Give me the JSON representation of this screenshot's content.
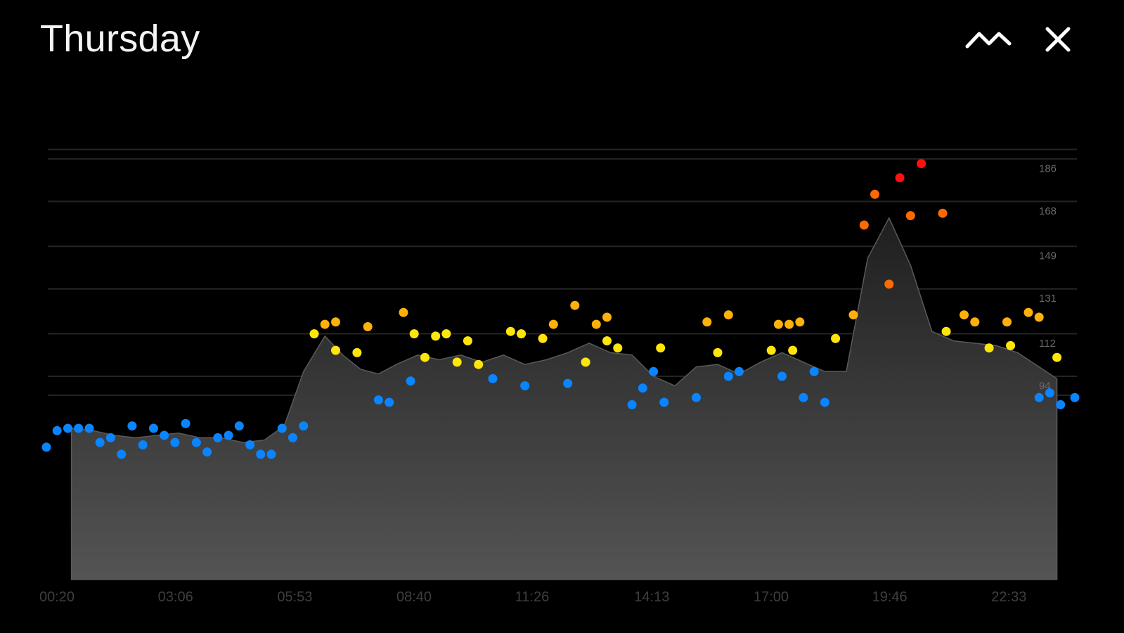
{
  "header": {
    "title": "Thursday",
    "toggle_icon": "trend-line-icon",
    "close_icon": "close-icon"
  },
  "chart_data": {
    "type": "scatter",
    "title": "Thursday",
    "xlabel": "",
    "ylabel": "",
    "x_ticks": [
      "00:20",
      "03:06",
      "05:53",
      "08:40",
      "11:26",
      "14:13",
      "17:00",
      "19:46",
      "22:33"
    ],
    "y_ticks": [
      94,
      112,
      131,
      149,
      168,
      186
    ],
    "ylim": [
      12,
      192
    ],
    "xlim": [
      "00:20",
      "24:20"
    ],
    "grid": true,
    "colors": {
      "background": "#000000",
      "area_top": "#1f1f1f",
      "area_bottom": "#545454",
      "gridline": "#242424",
      "low": "#0a84ff",
      "moderate": "#ffe60a",
      "elevated": "#ffb00a",
      "high": "#ff6a00",
      "peak": "#ff1010"
    },
    "trend": {
      "x": [
        "00:55",
        "01:25",
        "01:55",
        "02:25",
        "02:55",
        "03:25",
        "03:55",
        "04:25",
        "04:55",
        "05:25",
        "05:53",
        "06:20",
        "06:50",
        "07:15",
        "07:40",
        "08:05",
        "08:30",
        "09:00",
        "09:30",
        "10:00",
        "10:30",
        "11:00",
        "11:30",
        "12:00",
        "12:30",
        "13:00",
        "13:30",
        "14:00",
        "14:30",
        "15:00",
        "15:30",
        "16:00",
        "16:30",
        "17:00",
        "17:30",
        "18:00",
        "18:30",
        "19:00",
        "19:30",
        "20:00",
        "20:30",
        "21:00",
        "21:30",
        "22:00",
        "22:30",
        "23:00",
        "23:30",
        "23:55"
      ],
      "y": [
        76,
        75,
        73,
        72,
        73,
        74,
        72,
        72,
        70,
        71,
        77,
        100,
        115,
        107,
        101,
        99,
        103,
        107,
        105,
        107,
        104,
        107,
        103,
        105,
        108,
        112,
        108,
        107,
        98,
        94,
        102,
        103,
        99,
        104,
        108,
        104,
        100,
        100,
        148,
        165,
        145,
        117,
        113,
        112,
        111,
        108,
        102,
        97
      ]
    },
    "series": [
      {
        "name": "",
        "color_key": "low",
        "points": [
          [
            "00:20",
            68
          ],
          [
            "00:35",
            75
          ],
          [
            "00:50",
            76
          ],
          [
            "01:05",
            76
          ],
          [
            "01:20",
            76
          ],
          [
            "01:35",
            70
          ],
          [
            "01:50",
            72
          ],
          [
            "02:05",
            65
          ],
          [
            "02:20",
            77
          ],
          [
            "02:35",
            69
          ],
          [
            "02:50",
            76
          ],
          [
            "03:05",
            73
          ],
          [
            "03:20",
            70
          ],
          [
            "03:35",
            78
          ],
          [
            "03:50",
            70
          ],
          [
            "04:05",
            66
          ],
          [
            "04:20",
            72
          ],
          [
            "04:35",
            73
          ],
          [
            "04:50",
            77
          ],
          [
            "05:05",
            69
          ],
          [
            "05:20",
            65
          ],
          [
            "05:35",
            65
          ],
          [
            "05:50",
            76
          ],
          [
            "06:05",
            72
          ],
          [
            "06:20",
            77
          ],
          [
            "08:05",
            88
          ],
          [
            "08:20",
            87
          ],
          [
            "08:50",
            96
          ],
          [
            "10:45",
            97
          ],
          [
            "11:30",
            94
          ],
          [
            "12:30",
            95
          ],
          [
            "14:00",
            86
          ],
          [
            "14:15",
            93
          ],
          [
            "14:30",
            100
          ],
          [
            "14:45",
            87
          ],
          [
            "15:30",
            89
          ],
          [
            "16:15",
            98
          ],
          [
            "16:30",
            100
          ],
          [
            "17:30",
            98
          ],
          [
            "18:00",
            89
          ],
          [
            "18:15",
            100
          ],
          [
            "18:30",
            87
          ],
          [
            "23:30",
            89
          ],
          [
            "23:45",
            91
          ],
          [
            "24:00",
            86
          ],
          [
            "24:20",
            89
          ]
        ]
      },
      {
        "name": "",
        "color_key": "moderate",
        "points": [
          [
            "06:35",
            116
          ],
          [
            "07:05",
            109
          ],
          [
            "07:35",
            108
          ],
          [
            "08:55",
            116
          ],
          [
            "09:10",
            106
          ],
          [
            "09:25",
            115
          ],
          [
            "09:40",
            116
          ],
          [
            "09:55",
            104
          ],
          [
            "10:10",
            113
          ],
          [
            "10:25",
            103
          ],
          [
            "11:10",
            117
          ],
          [
            "11:25",
            116
          ],
          [
            "11:55",
            114
          ],
          [
            "12:55",
            104
          ],
          [
            "13:25",
            113
          ],
          [
            "13:40",
            110
          ],
          [
            "14:40",
            110
          ],
          [
            "16:00",
            108
          ],
          [
            "17:15",
            109
          ],
          [
            "17:45",
            109
          ],
          [
            "18:45",
            114
          ],
          [
            "21:20",
            117
          ],
          [
            "22:20",
            110
          ],
          [
            "22:50",
            111
          ],
          [
            "23:55",
            106
          ]
        ]
      },
      {
        "name": "",
        "color_key": "elevated",
        "points": [
          [
            "06:50",
            120
          ],
          [
            "07:05",
            121
          ],
          [
            "07:50",
            119
          ],
          [
            "08:40",
            125
          ],
          [
            "12:10",
            120
          ],
          [
            "12:40",
            128
          ],
          [
            "13:10",
            120
          ],
          [
            "13:25",
            123
          ],
          [
            "15:45",
            121
          ],
          [
            "16:15",
            124
          ],
          [
            "17:25",
            120
          ],
          [
            "17:40",
            120
          ],
          [
            "17:55",
            121
          ],
          [
            "19:10",
            124
          ],
          [
            "21:45",
            124
          ],
          [
            "22:00",
            121
          ],
          [
            "22:45",
            121
          ],
          [
            "23:15",
            125
          ],
          [
            "23:30",
            123
          ]
        ]
      },
      {
        "name": "",
        "color_key": "high",
        "points": [
          [
            "19:25",
            162
          ],
          [
            "19:40",
            175
          ],
          [
            "20:00",
            137
          ],
          [
            "20:30",
            166
          ],
          [
            "21:15",
            167
          ]
        ]
      },
      {
        "name": "",
        "color_key": "peak",
        "points": [
          [
            "20:15",
            182
          ],
          [
            "20:45",
            188
          ]
        ]
      }
    ]
  }
}
